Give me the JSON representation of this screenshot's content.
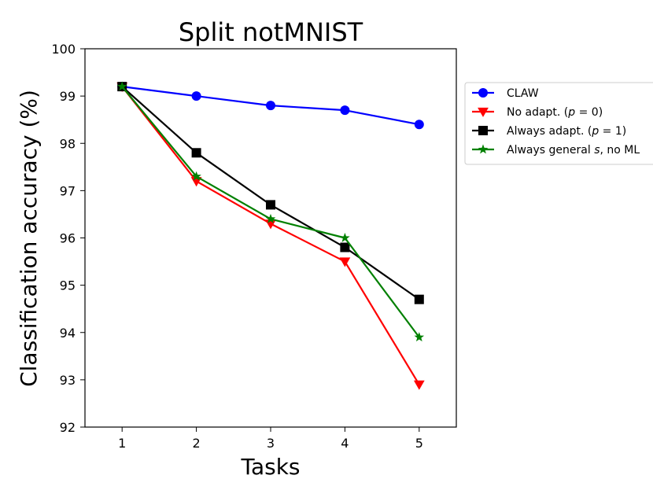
{
  "chart_data": {
    "type": "line",
    "title": "Split notMNIST",
    "xlabel": "Tasks",
    "ylabel": "Classification accuracy (%)",
    "x": [
      1,
      2,
      3,
      4,
      5
    ],
    "xlim": [
      0.5,
      5.5
    ],
    "ylim": [
      92,
      100
    ],
    "xticks": [
      "1",
      "2",
      "3",
      "4",
      "5"
    ],
    "yticks": [
      "92",
      "93",
      "94",
      "95",
      "96",
      "97",
      "98",
      "99",
      "100"
    ],
    "grid": false,
    "legend_position": "outside-right",
    "series": [
      {
        "name": "CLAW",
        "legend_text": [
          "CLAW"
        ],
        "color": "#0000ff",
        "marker": "circle",
        "values": [
          99.2,
          99.0,
          98.8,
          98.7,
          98.4
        ]
      },
      {
        "name": "No adapt. (p = 0)",
        "legend_text": [
          "No adapt. (",
          "p",
          " = 0)"
        ],
        "color": "#ff0000",
        "marker": "triangle-down",
        "values": [
          99.2,
          97.2,
          96.3,
          95.5,
          92.9
        ]
      },
      {
        "name": "Always adapt. (p = 1)",
        "legend_text": [
          "Always adapt. (",
          "p",
          " = 1)"
        ],
        "color": "#000000",
        "marker": "square",
        "values": [
          99.2,
          97.8,
          96.7,
          95.8,
          94.7
        ]
      },
      {
        "name": "Always general s, no ML",
        "legend_text": [
          "Always general ",
          "s",
          ", no ML"
        ],
        "color": "#008000",
        "marker": "star",
        "values": [
          99.2,
          97.3,
          96.4,
          96.0,
          93.9
        ]
      }
    ]
  }
}
